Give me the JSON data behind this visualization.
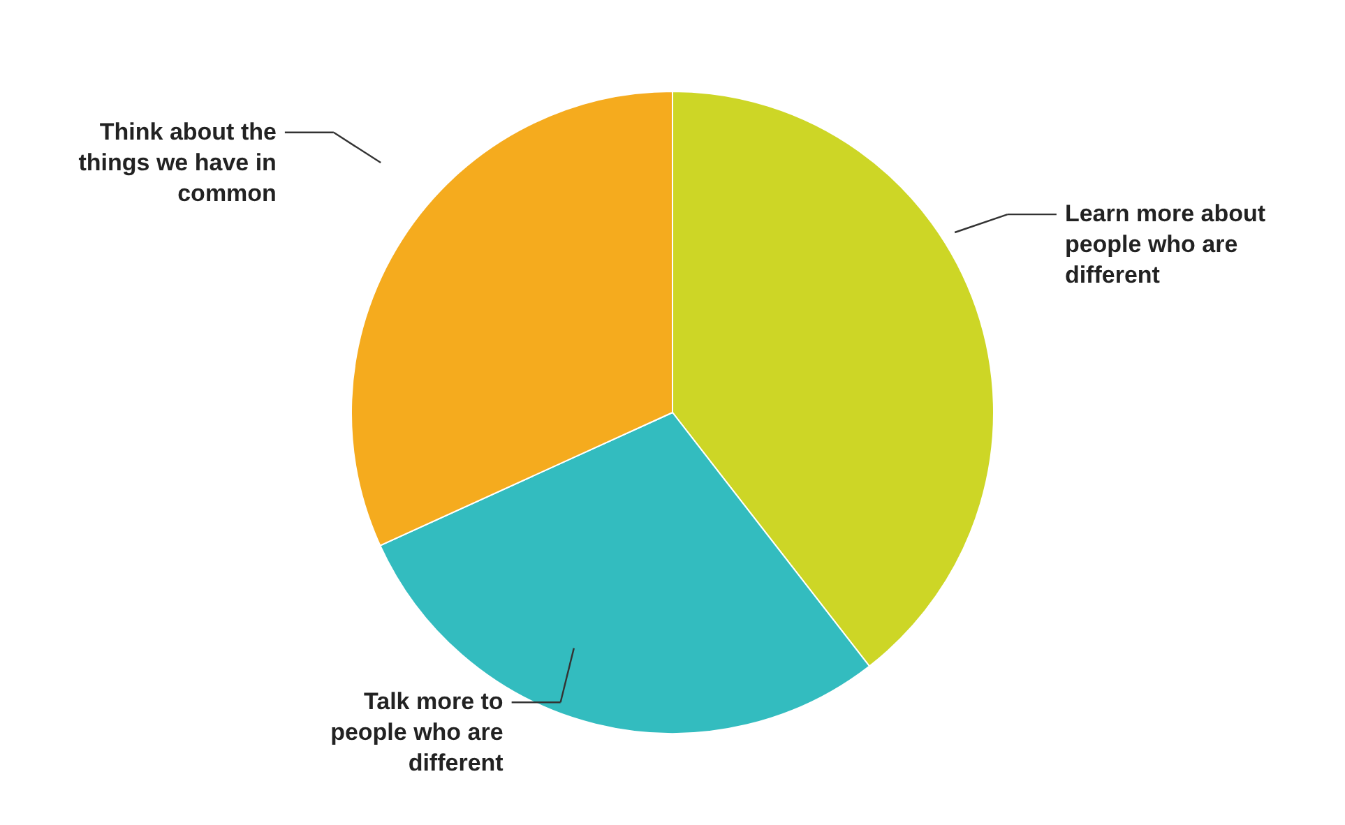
{
  "chart_data": {
    "type": "pie",
    "categories": [
      "Learn more about people who are different",
      "Talk more to people who are different",
      "Think about the things we have in common"
    ],
    "values": [
      39.5,
      28.7,
      31.8
    ],
    "colors": [
      "#cdd626",
      "#33bcbf",
      "#f5ab1e"
    ]
  }
}
